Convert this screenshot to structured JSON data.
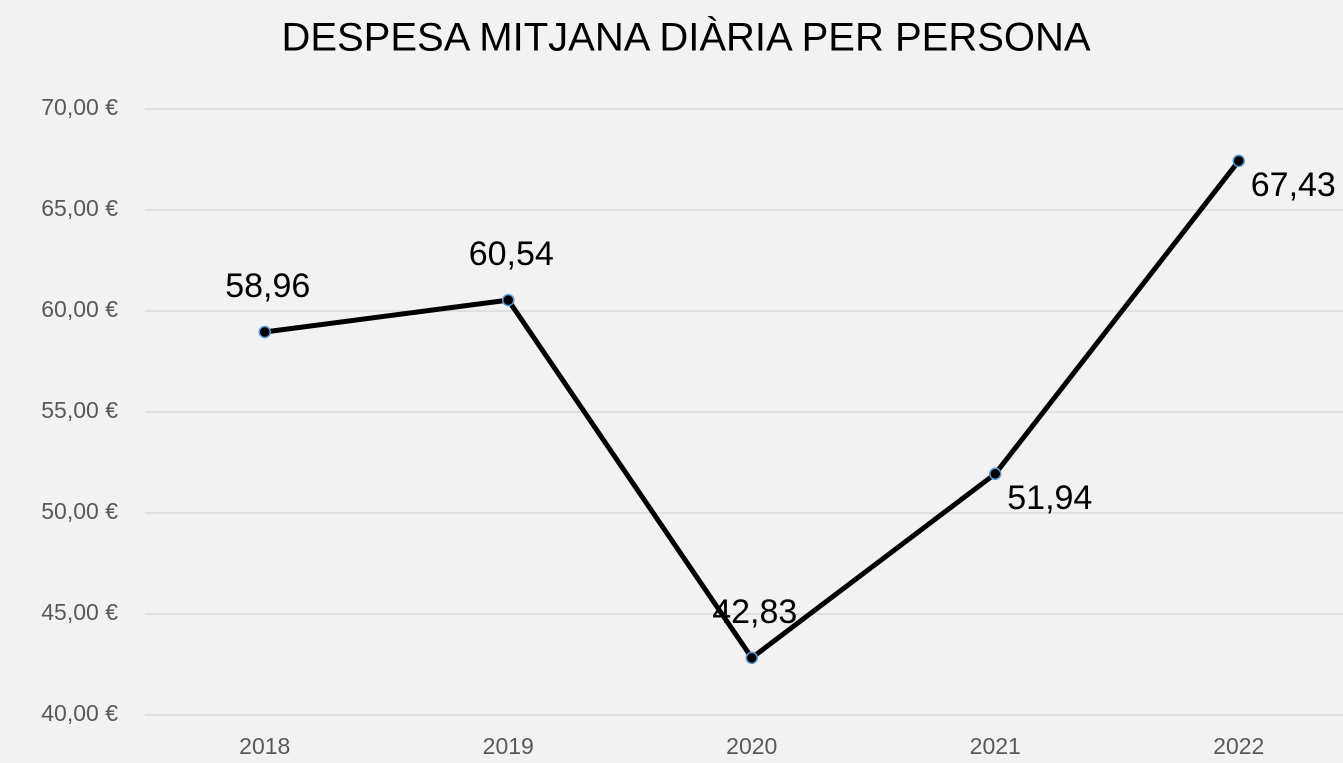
{
  "chart_data": {
    "type": "line",
    "title": "DESPESA MITJANA DIÀRIA PER PERSONA",
    "categories": [
      "2018",
      "2019",
      "2020",
      "2021",
      "2022"
    ],
    "values": [
      58.96,
      60.54,
      42.83,
      51.94,
      67.43
    ],
    "value_labels": [
      "58,96",
      "60,54",
      "42,83",
      "51,94",
      "67,43"
    ],
    "color": "#000000",
    "marker_edge_color": "#5b9bd5",
    "ylim": [
      40,
      70
    ],
    "yticks": [
      {
        "value": 40,
        "label": "40,00 €"
      },
      {
        "value": 45,
        "label": "45,00 €"
      },
      {
        "value": 50,
        "label": "50,00 €"
      },
      {
        "value": 55,
        "label": "55,00 €"
      },
      {
        "value": 60,
        "label": "60,00 €"
      },
      {
        "value": 65,
        "label": "65,00 €"
      },
      {
        "value": 70,
        "label": "70,00 €"
      }
    ],
    "grid": true
  }
}
